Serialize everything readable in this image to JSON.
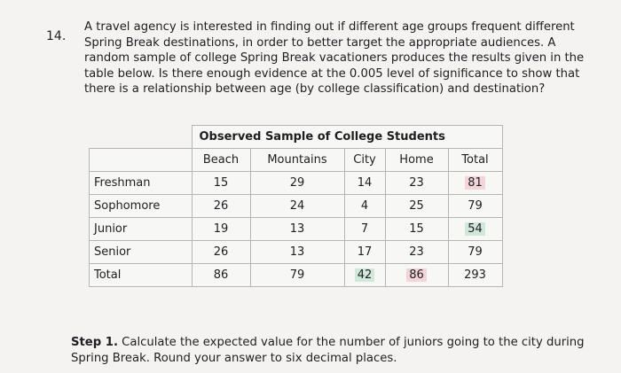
{
  "question": {
    "number": "14.",
    "lines": [
      "A travel agency is interested in finding out if different age groups frequent different",
      "Spring Break destinations, in order to better target the appropriate audiences. A",
      "random sample of college Spring Break vacationers produces the results given in the",
      "table below. Is there enough evidence at the 0.005 level of significance to show that",
      "there is a relationship between age (by college classification) and destination?"
    ]
  },
  "table": {
    "title": "Observed Sample of College Students",
    "header": [
      "Beach",
      "Mountains",
      "City",
      "Home",
      "Total"
    ],
    "rows": [
      [
        "Freshman",
        "15",
        "29",
        "14",
        "23",
        "81"
      ],
      [
        "Sophomore",
        "26",
        "24",
        "4",
        "25",
        "79"
      ],
      [
        "Junior",
        "19",
        "13",
        "7",
        "15",
        "54"
      ],
      [
        "Senior",
        "26",
        "13",
        "17",
        "23",
        "79"
      ],
      [
        "Total",
        "86",
        "79",
        "42",
        "86",
        "293"
      ]
    ]
  },
  "step": {
    "label": "Step 1.",
    "lines": [
      "Calculate the expected value for the number of juniors going to the city during",
      "Spring Break. Round your answer to six decimal places."
    ]
  }
}
